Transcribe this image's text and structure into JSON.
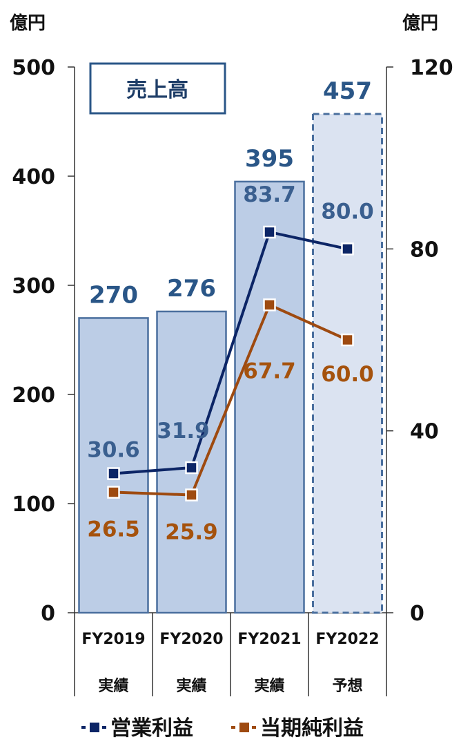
{
  "chart_data": {
    "type": "bar",
    "categories": [
      "FY2019",
      "FY2020",
      "FY2021",
      "FY2022"
    ],
    "category_sublabels": [
      "実績",
      "実績",
      "実績",
      "予想"
    ],
    "left_axis": {
      "unit": "億円",
      "ylim": [
        0,
        500
      ],
      "ticks": [
        "0",
        "100",
        "200",
        "300",
        "400",
        "500"
      ]
    },
    "right_axis": {
      "unit": "億円",
      "ylim": [
        0,
        120
      ],
      "ticks": [
        "0",
        "40",
        "80",
        "120"
      ]
    },
    "annotation": "売上高",
    "bars": {
      "values": [
        270,
        276,
        395,
        457
      ],
      "labels": [
        "270",
        "276",
        "395",
        "457"
      ],
      "forecast_flags": [
        false,
        false,
        false,
        true
      ]
    },
    "series": [
      {
        "name": "営業利益",
        "axis": "right",
        "values": [
          30.6,
          31.9,
          83.7,
          80.0
        ],
        "labels": [
          "30.6",
          "31.9",
          "83.7",
          "80.0"
        ],
        "color": "#0c2566"
      },
      {
        "name": "当期純利益",
        "axis": "right",
        "values": [
          26.5,
          25.9,
          67.7,
          60.0
        ],
        "labels": [
          "26.5",
          "25.9",
          "67.7",
          "60.0"
        ],
        "color": "#9e4a10"
      }
    ],
    "colors": {
      "bar_fill": "#bccde6",
      "bar_stroke": "#4a6f9e",
      "forecast_fill": "#dbe3f1",
      "forecast_stroke": "#4a6f9e",
      "bar_label": "#2a5687",
      "op_label": "#3a5f8f",
      "ni_label": "#a5520d",
      "annotation_border": "#2a5687"
    },
    "legend_position": "bottom",
    "grid": false
  }
}
